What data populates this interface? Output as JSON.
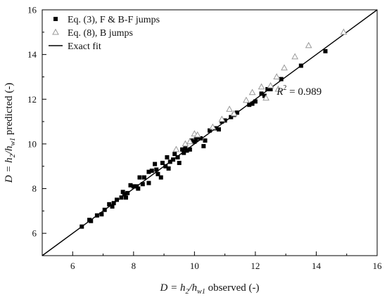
{
  "chart_data": {
    "type": "scatter",
    "title": "",
    "xlabel": {
      "pre": "D = h",
      "sub1": "2",
      "mid": "/h",
      "sub2": "w1",
      "post": " observed (-)"
    },
    "ylabel": {
      "pre": "D = h",
      "sub1": "2",
      "mid": "/h",
      "sub2": "w1",
      "post": " predicted (-)"
    },
    "xlim": [
      5,
      16
    ],
    "ylim": [
      5,
      16
    ],
    "xticks": [
      "6",
      "8",
      "10",
      "12",
      "14",
      "16"
    ],
    "yticks": [
      "6",
      "8",
      "10",
      "12",
      "14",
      "16"
    ],
    "grid": false,
    "legend_position": "top-left",
    "annotation": {
      "base": "R",
      "sup": "2",
      "rest": " = 0.989",
      "x": 12.7,
      "y": 12.2
    },
    "series": [
      {
        "name": "Eq. (3), F & B-F jumps",
        "marker": "filled-square",
        "color": "#000000",
        "points": [
          [
            6.3,
            6.3
          ],
          [
            6.55,
            6.6
          ],
          [
            6.6,
            6.55
          ],
          [
            6.8,
            6.8
          ],
          [
            6.95,
            6.85
          ],
          [
            7.05,
            7.05
          ],
          [
            7.2,
            7.3
          ],
          [
            7.3,
            7.2
          ],
          [
            7.35,
            7.35
          ],
          [
            7.45,
            7.5
          ],
          [
            7.6,
            7.6
          ],
          [
            7.65,
            7.85
          ],
          [
            7.7,
            7.75
          ],
          [
            7.75,
            7.6
          ],
          [
            7.8,
            7.8
          ],
          [
            7.9,
            8.15
          ],
          [
            8.0,
            8.1
          ],
          [
            8.1,
            8.1
          ],
          [
            8.15,
            8.0
          ],
          [
            8.2,
            8.5
          ],
          [
            8.3,
            8.2
          ],
          [
            8.35,
            8.5
          ],
          [
            8.5,
            8.25
          ],
          [
            8.5,
            8.75
          ],
          [
            8.6,
            8.8
          ],
          [
            8.7,
            9.1
          ],
          [
            8.75,
            8.85
          ],
          [
            8.8,
            8.65
          ],
          [
            8.9,
            8.5
          ],
          [
            8.95,
            9.15
          ],
          [
            9.05,
            9.0
          ],
          [
            9.1,
            9.4
          ],
          [
            9.15,
            8.9
          ],
          [
            9.2,
            9.2
          ],
          [
            9.3,
            9.3
          ],
          [
            9.35,
            9.55
          ],
          [
            9.45,
            9.4
          ],
          [
            9.5,
            9.15
          ],
          [
            9.6,
            9.75
          ],
          [
            9.65,
            9.6
          ],
          [
            9.7,
            9.8
          ],
          [
            9.75,
            9.7
          ],
          [
            9.85,
            9.75
          ],
          [
            9.9,
            10.15
          ],
          [
            10.0,
            10.1
          ],
          [
            10.05,
            10.2
          ],
          [
            10.1,
            10.3
          ],
          [
            10.2,
            10.25
          ],
          [
            10.3,
            9.9
          ],
          [
            10.35,
            10.15
          ],
          [
            10.5,
            10.6
          ],
          [
            10.7,
            10.7
          ],
          [
            10.8,
            10.65
          ],
          [
            10.9,
            11.0
          ],
          [
            11.0,
            11.05
          ],
          [
            11.2,
            11.2
          ],
          [
            11.3,
            11.3
          ],
          [
            11.4,
            11.4
          ],
          [
            11.8,
            11.75
          ],
          [
            11.9,
            11.8
          ],
          [
            12.0,
            11.9
          ],
          [
            12.2,
            12.25
          ],
          [
            12.3,
            12.15
          ],
          [
            12.4,
            12.45
          ],
          [
            12.5,
            12.45
          ],
          [
            12.85,
            12.9
          ],
          [
            13.5,
            13.5
          ],
          [
            14.3,
            14.15
          ]
        ]
      },
      {
        "name": "Eq. (8), B jumps",
        "marker": "hollow-triangle",
        "color": "#999999",
        "points": [
          [
            9.4,
            9.75
          ],
          [
            9.7,
            10.0
          ],
          [
            9.85,
            10.1
          ],
          [
            10.0,
            10.45
          ],
          [
            10.1,
            10.4
          ],
          [
            10.6,
            10.75
          ],
          [
            10.9,
            11.1
          ],
          [
            11.15,
            11.55
          ],
          [
            11.3,
            11.35
          ],
          [
            11.7,
            11.95
          ],
          [
            11.9,
            12.3
          ],
          [
            12.2,
            12.55
          ],
          [
            12.35,
            12.05
          ],
          [
            12.5,
            12.6
          ],
          [
            12.7,
            13.0
          ],
          [
            12.75,
            12.45
          ],
          [
            12.95,
            13.4
          ],
          [
            13.3,
            13.9
          ],
          [
            13.75,
            14.4
          ],
          [
            14.9,
            15.0
          ]
        ]
      },
      {
        "name": "Exact fit",
        "marker": "line",
        "color": "#000000",
        "points": [
          [
            5,
            5
          ],
          [
            16,
            16
          ]
        ]
      }
    ]
  }
}
